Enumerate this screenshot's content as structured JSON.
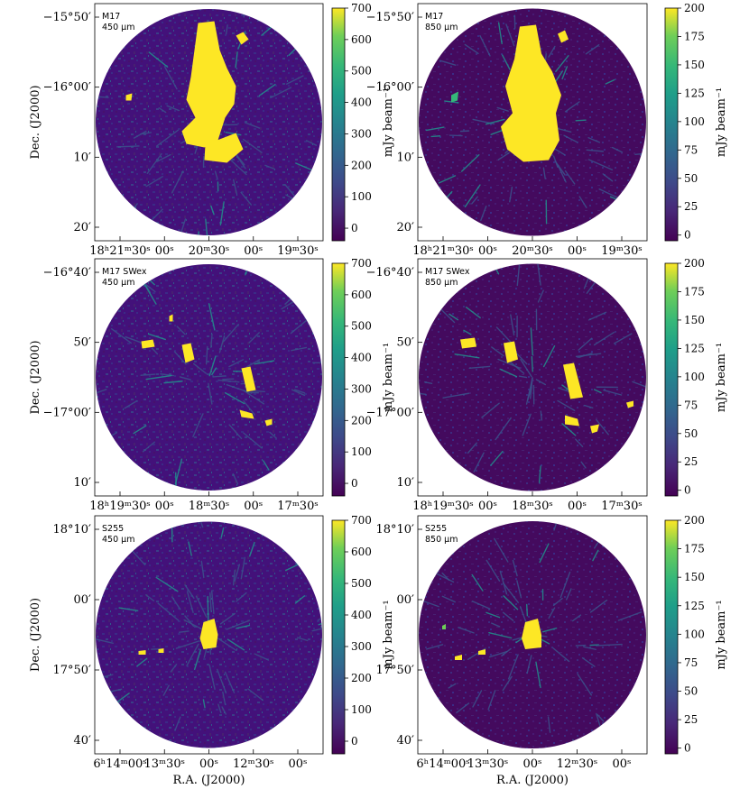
{
  "chart_data": {
    "type": "heatmap",
    "colormap": "viridis",
    "shared": {
      "xlabel": "R.A. (J2000)",
      "ylabel": "Dec. (J2000)",
      "cbar_label": "mJy beam⁻¹"
    },
    "panels": [
      {
        "source": "M17",
        "wavelength": "450 µm",
        "colorbar": {
          "range": [
            -40,
            700
          ],
          "ticks": [
            "700",
            "600",
            "500",
            "400",
            "300",
            "200",
            "100",
            "0"
          ]
        },
        "yticks": [
          "−15°50′",
          "−16°00′",
          "10′",
          "20′"
        ],
        "xticks": [
          "18ʰ21ᵐ30ˢ",
          "00ˢ",
          "20ᵐ30ˢ",
          "00ˢ",
          "19ᵐ30ˢ"
        ],
        "show_ylabel": true,
        "show_xlabel": false
      },
      {
        "source": "M17",
        "wavelength": "850 µm",
        "colorbar": {
          "range": [
            -5,
            200
          ],
          "ticks": [
            "200",
            "175",
            "150",
            "125",
            "100",
            "75",
            "50",
            "25",
            "0"
          ]
        },
        "yticks": [
          "−15°50′",
          "−16°00′",
          "10′",
          "20′"
        ],
        "xticks": [
          "18ʰ21ᵐ30ˢ",
          "00ˢ",
          "20ᵐ30ˢ",
          "00ˢ",
          "19ᵐ30ˢ"
        ],
        "show_ylabel": false,
        "show_xlabel": false
      },
      {
        "source": "M17 SWex",
        "wavelength": "450 µm",
        "colorbar": {
          "range": [
            -40,
            700
          ],
          "ticks": [
            "700",
            "600",
            "500",
            "400",
            "300",
            "200",
            "100",
            "0"
          ]
        },
        "yticks": [
          "−16°40′",
          "50′",
          "−17°00′",
          "10′"
        ],
        "xticks": [
          "18ʰ19ᵐ30ˢ",
          "00ˢ",
          "18ᵐ30ˢ",
          "00ˢ",
          "17ᵐ30ˢ"
        ],
        "show_ylabel": true,
        "show_xlabel": false
      },
      {
        "source": "M17 SWex",
        "wavelength": "850 µm",
        "colorbar": {
          "range": [
            -5,
            200
          ],
          "ticks": [
            "200",
            "175",
            "150",
            "125",
            "100",
            "75",
            "50",
            "25",
            "0"
          ]
        },
        "yticks": [
          "−16°40′",
          "50′",
          "−17°00′",
          "10′"
        ],
        "xticks": [
          "18ʰ19ᵐ30ˢ",
          "00ˢ",
          "18ᵐ30ˢ",
          "00ˢ",
          "17ᵐ30ˢ"
        ],
        "show_ylabel": false,
        "show_xlabel": false
      },
      {
        "source": "S255",
        "wavelength": "450 µm",
        "colorbar": {
          "range": [
            -40,
            700
          ],
          "ticks": [
            "700",
            "600",
            "500",
            "400",
            "300",
            "200",
            "100",
            "0"
          ]
        },
        "yticks": [
          "18°10′",
          "00′",
          "17°50′",
          "40′"
        ],
        "xticks": [
          "6ʰ14ᵐ00ˢ",
          "13ᵐ30ˢ",
          "00ˢ",
          "12ᵐ30ˢ",
          "00ˢ"
        ],
        "show_ylabel": true,
        "show_xlabel": true
      },
      {
        "source": "S255",
        "wavelength": "850 µm",
        "colorbar": {
          "range": [
            -5,
            200
          ],
          "ticks": [
            "200",
            "175",
            "150",
            "125",
            "100",
            "75",
            "50",
            "25",
            "0"
          ]
        },
        "yticks": [
          "18°10′",
          "00′",
          "17°50′",
          "40′"
        ],
        "xticks": [
          "6ʰ14ᵐ00ˢ",
          "13ᵐ30ˢ",
          "00ˢ",
          "12ᵐ30ˢ",
          "00ˢ"
        ],
        "show_ylabel": false,
        "show_xlabel": true
      }
    ]
  }
}
